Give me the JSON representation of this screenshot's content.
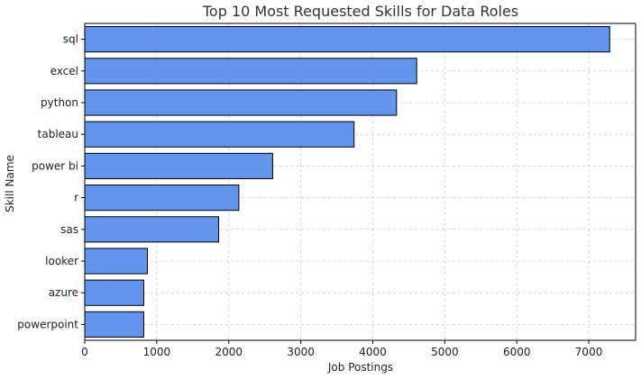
{
  "chart_data": {
    "type": "bar",
    "orientation": "horizontal",
    "title": "Top 10 Most Requested Skills for Data Roles",
    "xlabel": "Job Postings",
    "ylabel": "Skill Name",
    "categories": [
      "sql",
      "excel",
      "python",
      "tableau",
      "power bi",
      "r",
      "sas",
      "looker",
      "azure",
      "powerpoint"
    ],
    "values": [
      7290,
      4610,
      4330,
      3740,
      2610,
      2140,
      1860,
      870,
      820,
      820
    ],
    "xlim": [
      0,
      7650
    ],
    "xticks": [
      0,
      1000,
      2000,
      3000,
      4000,
      5000,
      6000,
      7000
    ],
    "grid": true,
    "bar_color": "#6495ED",
    "bar_edge_color": "#000000"
  }
}
